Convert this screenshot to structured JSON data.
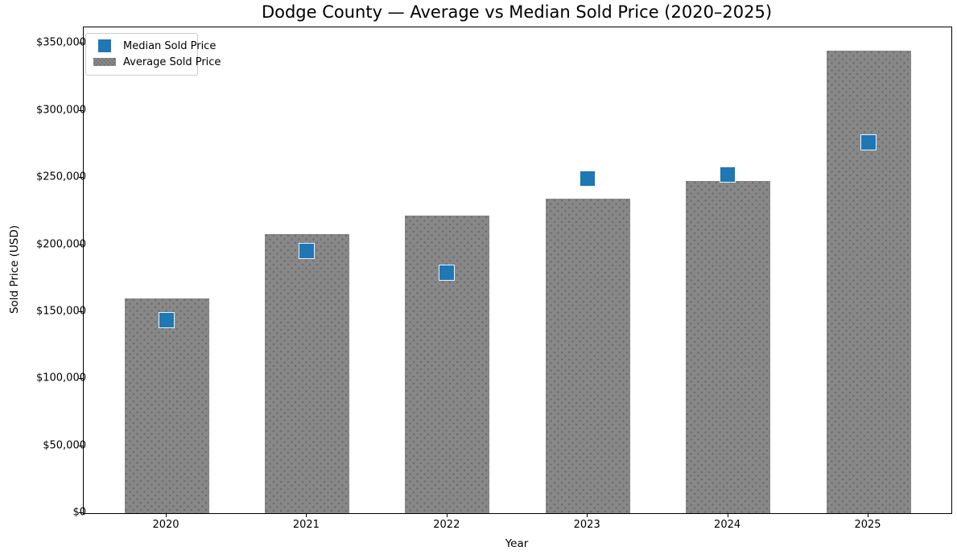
{
  "chart_data": {
    "type": "bar",
    "title": "Dodge County — Average vs Median Sold Price (2020–2025)",
    "xlabel": "Year",
    "ylabel": "Sold Price (USD)",
    "categories": [
      "2020",
      "2021",
      "2022",
      "2023",
      "2024",
      "2025"
    ],
    "series": [
      {
        "name": "Median Sold Price",
        "type": "scatter",
        "marker": "square",
        "color": "#1f77b4",
        "values": [
          143500,
          195000,
          179000,
          249000,
          252000,
          276000
        ]
      },
      {
        "name": "Average Sold Price",
        "type": "bar",
        "color": "#888888",
        "hatch": "dots",
        "values": [
          160000,
          208000,
          222000,
          234500,
          248000,
          345000
        ]
      }
    ],
    "ylim": [
      0,
      362250
    ],
    "yticks": {
      "values": [
        0,
        50000,
        100000,
        150000,
        200000,
        250000,
        300000,
        350000
      ],
      "labels": [
        "$0",
        "$50,000",
        "$100,000",
        "$150,000",
        "$200,000",
        "$250,000",
        "$300,000",
        "$350,000"
      ]
    },
    "grid": false,
    "legend_position": "upper left"
  },
  "colors": {
    "median_marker": "#1f77b4",
    "average_bar": "#888888",
    "hatch_dot": "#6d6d6d",
    "spine": "#000000",
    "background": "#ffffff",
    "legend_border": "#cccccc"
  }
}
